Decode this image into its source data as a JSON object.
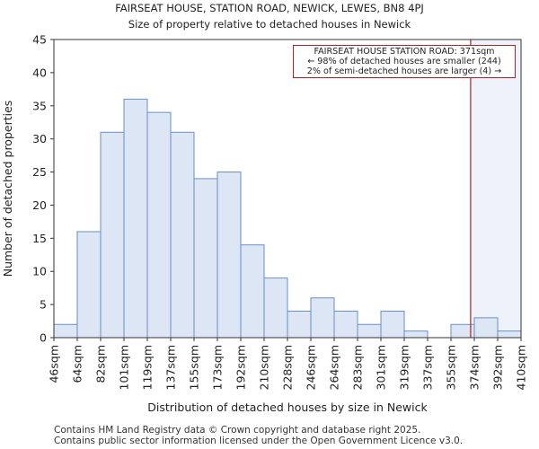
{
  "chart_data": {
    "type": "bar",
    "title": "FAIRSEAT HOUSE, STATION ROAD, NEWICK, LEWES, BN8 4PJ",
    "subtitle": "Size of property relative to detached houses in Newick",
    "xlabel": "Distribution of detached houses by size in Newick",
    "ylabel": "Number of detached properties",
    "ylim": [
      0,
      45
    ],
    "yticks": [
      0,
      5,
      10,
      15,
      20,
      25,
      30,
      35,
      40,
      45
    ],
    "bin_edges_labels": [
      "46sqm",
      "64sqm",
      "82sqm",
      "101sqm",
      "119sqm",
      "137sqm",
      "155sqm",
      "173sqm",
      "192sqm",
      "210sqm",
      "228sqm",
      "246sqm",
      "264sqm",
      "283sqm",
      "301sqm",
      "319sqm",
      "337sqm",
      "355sqm",
      "374sqm",
      "392sqm",
      "410sqm"
    ],
    "values": [
      2,
      16,
      31,
      36,
      34,
      31,
      24,
      25,
      14,
      9,
      4,
      6,
      4,
      2,
      4,
      1,
      0,
      2,
      3,
      1
    ],
    "marker_value_sqm": 371,
    "annotation": {
      "line1": "FAIRSEAT HOUSE STATION ROAD: 371sqm",
      "line2": "← 98% of detached houses are smaller (244)",
      "line3": "2% of semi-detached houses are larger (4) →"
    },
    "colors": {
      "bar_fill": "#dce6f5",
      "bar_edge": "#6a8fc8",
      "marker": "#b22222",
      "highlight": "#eef3fb"
    }
  },
  "footer": {
    "line1": "Contains HM Land Registry data © Crown copyright and database right 2025.",
    "line2": "Contains public sector information licensed under the Open Government Licence v3.0."
  }
}
